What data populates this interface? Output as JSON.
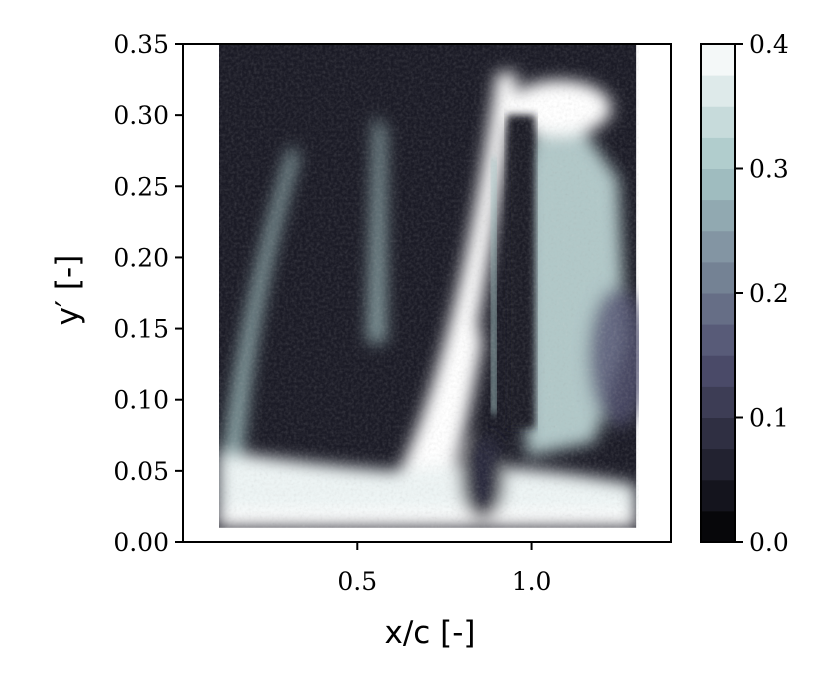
{
  "chart_data": {
    "type": "heatmap",
    "title": "",
    "xlabel": "x/c [-]",
    "ylabel": "y′ [-]",
    "xlim": [
      0.0,
      1.4
    ],
    "ylim": [
      0.0,
      0.35
    ],
    "x_ticks": [
      0.5,
      1.0
    ],
    "x_tick_labels": [
      "0.5",
      "1.0"
    ],
    "y_ticks": [
      0.0,
      0.05,
      0.1,
      0.15,
      0.2,
      0.25,
      0.3,
      0.35
    ],
    "y_tick_labels": [
      "0.00",
      "0.05",
      "0.10",
      "0.15",
      "0.20",
      "0.25",
      "0.30",
      "0.35"
    ],
    "data_extent": {
      "x": [
        0.1,
        1.3
      ],
      "y": [
        0.01,
        0.35
      ]
    },
    "colorbar": {
      "vmin": 0.0,
      "vmax": 0.4,
      "levels": 16,
      "ticks": [
        0.0,
        0.1,
        0.2,
        0.3,
        0.4
      ],
      "tick_labels": [
        "0.0",
        "0.1",
        "0.2",
        "0.3",
        "0.4"
      ],
      "colormap": "bone"
    },
    "features": [
      {
        "name": "near-wall band",
        "x": [
          0.1,
          1.3
        ],
        "y": [
          0.01,
          0.05
        ],
        "value": 0.38
      },
      {
        "name": "inclined shear layer",
        "x": [
          0.55,
          0.95
        ],
        "y": [
          0.03,
          0.33
        ],
        "value": 0.4
      },
      {
        "name": "left streak",
        "x": [
          0.17,
          0.33
        ],
        "y": [
          0.05,
          0.28
        ],
        "value": 0.3
      },
      {
        "name": "center streak",
        "x": [
          0.47,
          0.57
        ],
        "y": [
          0.13,
          0.3
        ],
        "value": 0.3
      },
      {
        "name": "thin vertical streak",
        "x": [
          0.88,
          0.92
        ],
        "y": [
          0.09,
          0.27
        ],
        "value": 0.3
      },
      {
        "name": "right lobe",
        "x": [
          0.95,
          1.3
        ],
        "y": [
          0.05,
          0.32
        ],
        "value": 0.32
      },
      {
        "name": "background",
        "x": [
          0.1,
          1.3
        ],
        "y": [
          0.01,
          0.35
        ],
        "value": 0.05
      }
    ]
  }
}
